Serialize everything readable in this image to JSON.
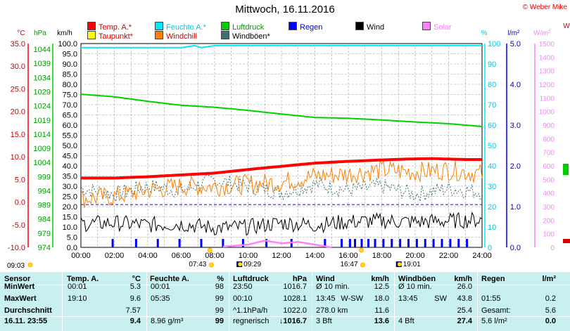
{
  "title": "Mittwoch, 16.11.2016",
  "copyright": "© Weber Mike",
  "legend": [
    {
      "label": "Temp. A.*",
      "color": "#ff0000",
      "text_color": "#cc0000"
    },
    {
      "label": "Feuchte A.*",
      "color": "#00e8ff",
      "text_color": "#00c8e0"
    },
    {
      "label": "Luftdruck",
      "color": "#00d000",
      "text_color": "#009900"
    },
    {
      "label": "Regen",
      "color": "#0000ff",
      "text_color": "#0000cc"
    },
    {
      "label": "Wind",
      "color": "#000000",
      "text_color": "#000000"
    },
    {
      "label": "Solar",
      "color": "#ff80ff",
      "text_color": "#ff80ff"
    },
    {
      "label": "Taupunkt*",
      "color": "#ffff00",
      "text_color": "#cc0000"
    },
    {
      "label": "Windchill",
      "color": "#ff8000",
      "text_color": "#cc0000"
    },
    {
      "label": "Windböen*",
      "color": "#407070",
      "text_color": "#000000"
    }
  ],
  "axis_units": {
    "temp": "°C",
    "pressure": "hPa",
    "wind": "km/h",
    "humidity": "%",
    "rain": "l/m²",
    "solar": "W/m²",
    "extra": "W"
  },
  "chart_data": {
    "type": "line",
    "x_unit": "time",
    "x_ticks": [
      "00:00",
      "02:00",
      "04:00",
      "06:00",
      "08:00",
      "10:00",
      "12:00",
      "14:00",
      "16:00",
      "18:00",
      "20:00",
      "22:00",
      "24:00"
    ],
    "temp_axis": {
      "unit": "°C",
      "range": [
        -10,
        35
      ],
      "ticks": [
        "35.0",
        "30.0",
        "25.0",
        "20.0",
        "15.0",
        "10.0",
        "5.0",
        "0.0",
        "-5.0",
        "-10.0"
      ]
    },
    "pressure_axis": {
      "unit": "hPa",
      "range": [
        974,
        1046
      ],
      "ticks": [
        "1044",
        "1039",
        "1034",
        "1029",
        "1024",
        "1019",
        "1014",
        "1009",
        "1004",
        "999",
        "994",
        "989",
        "984",
        "979",
        "974"
      ]
    },
    "wind_axis": {
      "unit": "km/h",
      "range": [
        0,
        100
      ],
      "ticks": [
        "100.0",
        "95.0",
        "90.0",
        "85.0",
        "80.0",
        "75.0",
        "70.0",
        "65.0",
        "60.0",
        "55.0",
        "50.0",
        "45.0",
        "40.0",
        "35.0",
        "30.0",
        "25.0",
        "20.0",
        "15.0",
        "10.0",
        "5.0",
        "0.0"
      ]
    },
    "humidity_axis": {
      "unit": "%",
      "range": [
        0,
        100
      ],
      "ticks": [
        "100",
        "90",
        "80",
        "70",
        "60",
        "50",
        "40",
        "30",
        "20",
        "10",
        "0"
      ]
    },
    "rain_axis": {
      "unit": "l/m²",
      "range": [
        0,
        5
      ],
      "ticks": [
        "5.0",
        "4.0",
        "3.0",
        "2.0",
        "1.0",
        "0.0"
      ]
    },
    "solar_axis": {
      "unit": "W/m²",
      "range": [
        0,
        1500
      ],
      "ticks": [
        "1500",
        "1400",
        "1300",
        "1200",
        "1100",
        "1000",
        "900",
        "800",
        "700",
        "600",
        "500",
        "400",
        "300",
        "200",
        "100",
        "0"
      ]
    },
    "series": [
      {
        "name": "Temp. A.*",
        "axis": "temp",
        "color": "#ff0000",
        "x": [
          0,
          2,
          4,
          6,
          8,
          10,
          12,
          14,
          16,
          18,
          19.5,
          21,
          22,
          23,
          24
        ],
        "y": [
          5.3,
          5.3,
          5.6,
          6.0,
          6.4,
          7.2,
          7.9,
          8.6,
          9.0,
          9.3,
          9.5,
          9.6,
          9.5,
          9.4,
          9.4
        ]
      },
      {
        "name": "Feuchte A.*",
        "axis": "humidity",
        "color": "#00e8ff",
        "x": [
          0,
          4,
          6,
          6.8,
          7.2,
          8,
          12,
          16,
          20,
          24
        ],
        "y": [
          98,
          98,
          98,
          99,
          98,
          99,
          99,
          99,
          99,
          99
        ]
      },
      {
        "name": "Luftdruck",
        "axis": "pressure",
        "color": "#00d000",
        "x": [
          0,
          2,
          4,
          6,
          8,
          10,
          12,
          14,
          16,
          18,
          20,
          22,
          24
        ],
        "y": [
          1028.1,
          1027.2,
          1025.6,
          1024.2,
          1023.5,
          1022.4,
          1021.1,
          1019.9,
          1019.6,
          1019.0,
          1018.3,
          1017.7,
          1016.7
        ]
      },
      {
        "name": "Wind",
        "axis": "wind",
        "color": "#000000",
        "x": [
          0,
          2,
          4,
          6,
          8,
          10,
          12,
          14,
          16,
          18,
          20,
          22,
          24
        ],
        "y": [
          11.6,
          12,
          11,
          11.5,
          9.5,
          10,
          12,
          11,
          12.5,
          13,
          12.5,
          13,
          13.6
        ]
      },
      {
        "name": "Windchill",
        "axis": "wind",
        "color": "#ff8000",
        "x": [
          0,
          2,
          4,
          6,
          8,
          10,
          12,
          14,
          16,
          18,
          20,
          22,
          24
        ],
        "y": [
          24,
          25,
          28,
          30,
          30,
          31,
          32,
          35,
          36,
          38,
          37,
          38,
          36
        ]
      },
      {
        "name": "Windböen*",
        "axis": "wind",
        "color": "#407070",
        "x": [
          0,
          2,
          4,
          6,
          8,
          10,
          12,
          14,
          16,
          18,
          20,
          22,
          24
        ],
        "y": [
          29,
          26,
          30,
          28,
          33,
          30,
          27,
          31,
          28,
          30,
          26,
          29,
          27
        ]
      },
      {
        "name": "Solar",
        "axis": "solar",
        "color": "#ff80ff",
        "x": [
          8.5,
          10,
          11,
          12,
          13,
          14,
          15
        ],
        "y": [
          5,
          20,
          50,
          30,
          40,
          20,
          0
        ]
      }
    ],
    "rain_marks": [
      1.9,
      3.3,
      4.6,
      5.9,
      7.2,
      8.5,
      9.7,
      11.1,
      12.6,
      14.6,
      15.6,
      16.1,
      16.4,
      16.8,
      17.2,
      17.6,
      18.1,
      18.6,
      19.1,
      19.6,
      20.1,
      20.6,
      21.1,
      21.6,
      22.1,
      22.6,
      23.1
    ],
    "sunrise_time": "07:43",
    "sunset_time": "16:47",
    "moonset_time": "09:29",
    "moonrise_time": "19:01",
    "prev_sunset_time": "09:03",
    "dashed_ref_humidity": 21
  },
  "summary": {
    "headers": {
      "sensor": "Sensor",
      "temp": "Temp. A.",
      "temp_unit": "°C",
      "hum": "Feuchte A.",
      "hum_unit": "%",
      "press": "Luftdruck",
      "press_unit": "hPa",
      "wind": "Wind",
      "wind_unit": "km/h",
      "gust": "Windböen",
      "gust_unit": "km/h",
      "rain": "Regen",
      "rain_unit": "l/m²"
    },
    "rows": [
      {
        "label": "MinWert",
        "temp_time": "00:01",
        "temp_val": "5.3",
        "hum_time": "00:01",
        "hum_val": "98",
        "press_time": "23:50",
        "press_val": "1016.7",
        "wind_a": "Ø 10 min.",
        "wind_b": "",
        "wind_val": "12.5",
        "gust_a": "Ø 10 min.",
        "gust_b": "",
        "gust_val": "26.0",
        "rain_a": "",
        "rain_val": ""
      },
      {
        "label": "MaxWert",
        "temp_time": "19:10",
        "temp_val": "9.6",
        "hum_time": "05:35",
        "hum_val": "99",
        "press_time": "00:10",
        "press_val": "1028.1",
        "wind_a": "13:45",
        "wind_b": "W-SW",
        "wind_val": "18.0",
        "gust_a": "13:45",
        "gust_b": "SW",
        "gust_val": "43.8",
        "rain_a": "01:55",
        "rain_val": "0.2"
      },
      {
        "label": "Durchschnitt",
        "temp_time": "",
        "temp_val": "7.57",
        "hum_time": "",
        "hum_val": "99",
        "press_time": "^1.1hPa/h",
        "press_val": "1022.0",
        "wind_a": "278.0 km",
        "wind_b": "",
        "wind_val": "11.6",
        "gust_a": "",
        "gust_b": "",
        "gust_val": "25.4",
        "rain_a": "Gesamt:",
        "rain_val": "5.6"
      },
      {
        "label": "16.11. 23:55",
        "temp_time": "",
        "temp_val": "9.4",
        "hum_time": "8.96 g/m³",
        "hum_val": "99",
        "press_time": "regnerisch",
        "press_val": "↓1016.7",
        "wind_a": "3 Bft",
        "wind_b": "",
        "wind_val": "13.6",
        "gust_a": "4 Bft",
        "gust_b": "",
        "gust_val": "27.4",
        "rain_a": "5.6 l/m²",
        "rain_val": "0.0"
      }
    ]
  }
}
